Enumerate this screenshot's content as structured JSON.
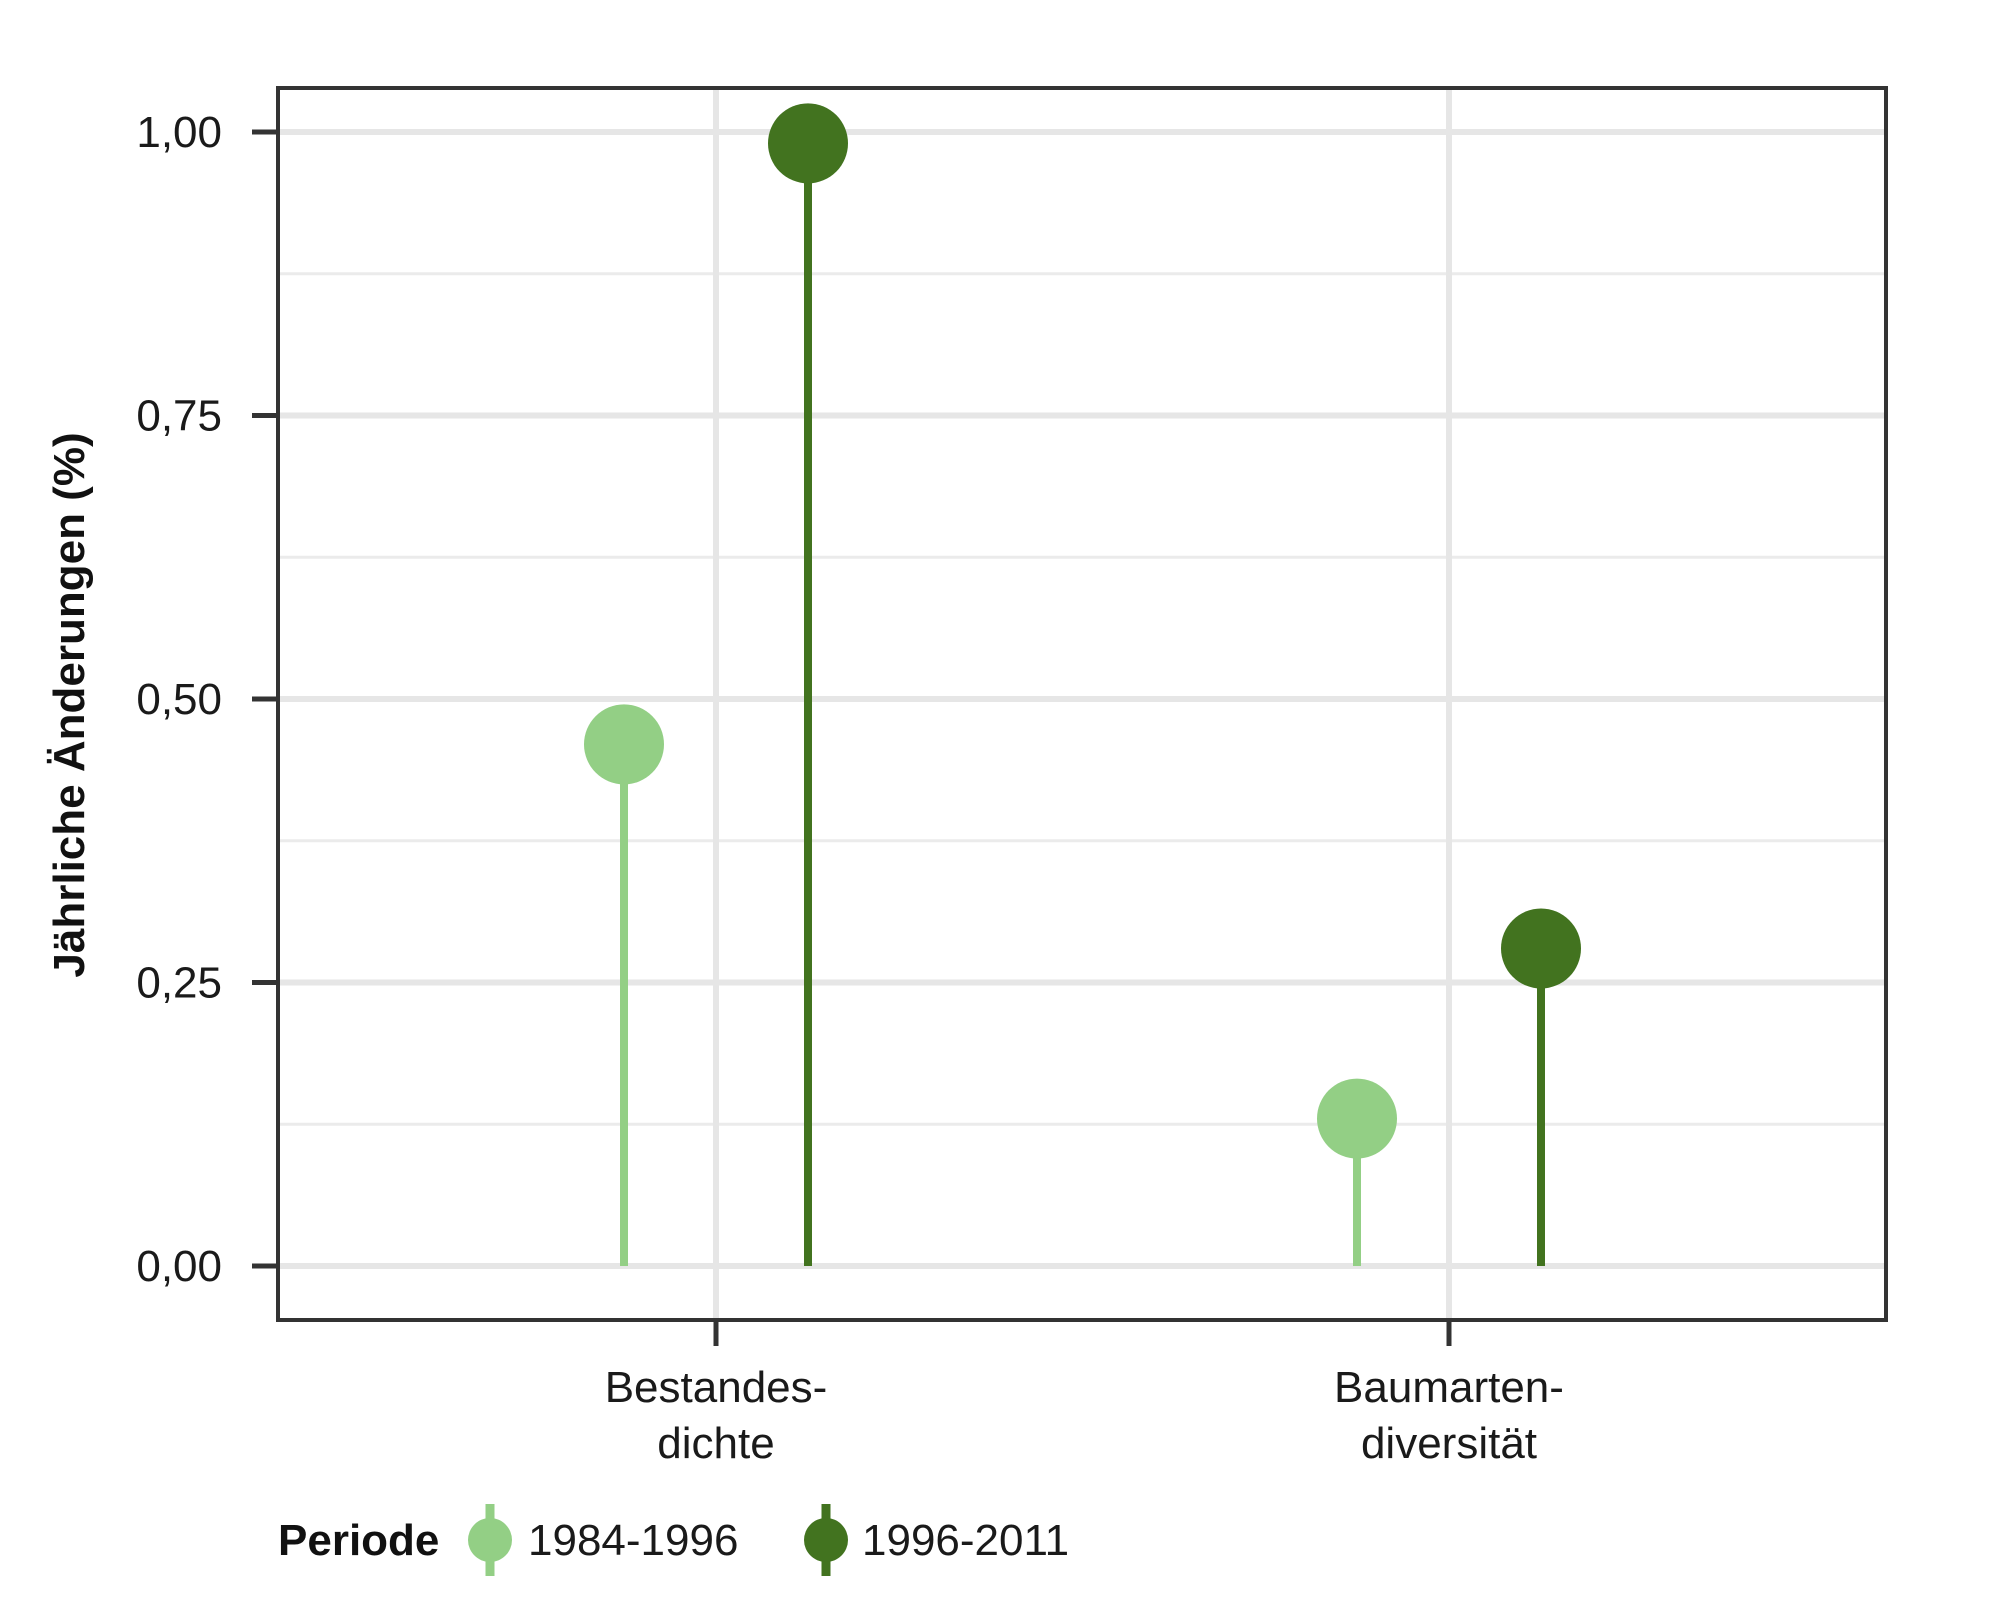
{
  "chart_data": {
    "type": "lollipop",
    "categories": [
      "Bestandes-\ndichte",
      "Baumarten-\ndiversität"
    ],
    "series": [
      {
        "name": "1984-1996",
        "values": [
          0.46,
          0.13
        ],
        "color": "#93cf85"
      },
      {
        "name": "1996-2011",
        "values": [
          0.99,
          0.28
        ],
        "color": "#42731f"
      }
    ],
    "ylabel": "Jährliche Änderungen (%)",
    "xlabel": "",
    "ylim": [
      -0.1,
      1.04
    ],
    "yticks": [
      0.0,
      0.25,
      0.5,
      0.75,
      1.0
    ],
    "ytick_labels": [
      "0,00",
      "0,25",
      "0,50",
      "0,75",
      "1,00"
    ],
    "grid": true,
    "legend": {
      "title": "Periode",
      "position": "bottom-left"
    }
  }
}
